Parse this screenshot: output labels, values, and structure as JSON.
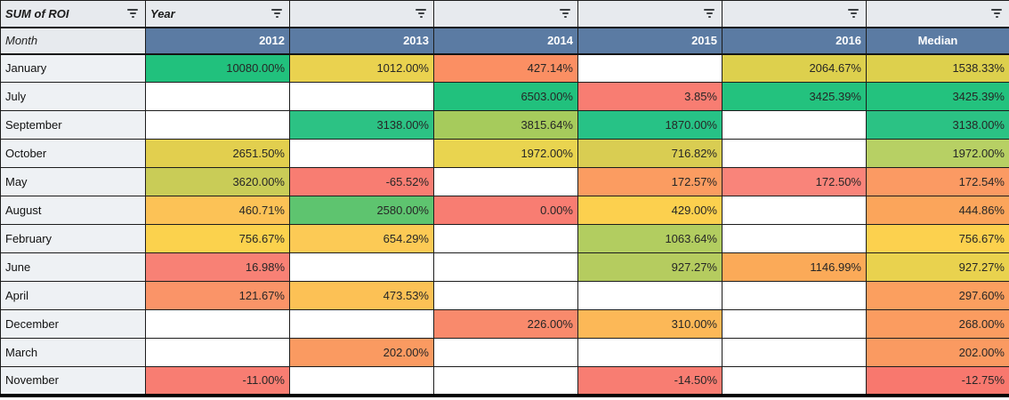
{
  "pivot": {
    "measure_label": "SUM of ROI",
    "col_dim_label": "Year",
    "row_dim_label": "Month",
    "columns": [
      "2012",
      "2013",
      "2014",
      "2015",
      "2016",
      "Median"
    ],
    "header_bg": "#5b7ba3",
    "filter_row_bg": "#e7eaee",
    "rows": [
      {
        "month": "January",
        "cells": [
          {
            "v": "10080.00%",
            "c": "#21c17d"
          },
          {
            "v": "1012.00%",
            "c": "#ead24f"
          },
          {
            "v": "427.14%",
            "c": "#fb8f63"
          },
          {
            "v": "",
            "c": "#ffffff"
          },
          {
            "v": "2064.67%",
            "c": "#ddd04d"
          },
          {
            "v": "1538.33%",
            "c": "#ddd04d"
          }
        ]
      },
      {
        "month": "July",
        "cells": [
          {
            "v": "",
            "c": "#ffffff"
          },
          {
            "v": "",
            "c": "#ffffff"
          },
          {
            "v": "6503.00%",
            "c": "#21c17d"
          },
          {
            "v": "3.85%",
            "c": "#f87d72"
          },
          {
            "v": "3425.39%",
            "c": "#23c27e"
          },
          {
            "v": "3425.39%",
            "c": "#23c27e"
          }
        ]
      },
      {
        "month": "September",
        "cells": [
          {
            "v": "",
            "c": "#ffffff"
          },
          {
            "v": "3138.00%",
            "c": "#2cc284"
          },
          {
            "v": "3815.64%",
            "c": "#a6cb5c"
          },
          {
            "v": "1870.00%",
            "c": "#27c286"
          },
          {
            "v": "",
            "c": "#ffffff"
          },
          {
            "v": "3138.00%",
            "c": "#2bc284"
          }
        ]
      },
      {
        "month": "October",
        "cells": [
          {
            "v": "2651.50%",
            "c": "#e2cf4e"
          },
          {
            "v": "",
            "c": "#ffffff"
          },
          {
            "v": "1972.00%",
            "c": "#e9d44f"
          },
          {
            "v": "716.82%",
            "c": "#d9cd52"
          },
          {
            "v": "",
            "c": "#ffffff"
          },
          {
            "v": "1972.00%",
            "c": "#b7d064"
          }
        ]
      },
      {
        "month": "May",
        "cells": [
          {
            "v": "3620.00%",
            "c": "#c9cc57"
          },
          {
            "v": "-65.52%",
            "c": "#f87d72"
          },
          {
            "v": "",
            "c": "#ffffff"
          },
          {
            "v": "172.57%",
            "c": "#fb9c61"
          },
          {
            "v": "172.50%",
            "c": "#f9847a"
          },
          {
            "v": "172.54%",
            "c": "#fb9a63"
          }
        ]
      },
      {
        "month": "August",
        "cells": [
          {
            "v": "460.71%",
            "c": "#fcc256"
          },
          {
            "v": "2580.00%",
            "c": "#5ec46f"
          },
          {
            "v": "0.00%",
            "c": "#f87d72"
          },
          {
            "v": "429.00%",
            "c": "#fcd04e"
          },
          {
            "v": "",
            "c": "#ffffff"
          },
          {
            "v": "444.86%",
            "c": "#fba55b"
          }
        ]
      },
      {
        "month": "February",
        "cells": [
          {
            "v": "756.67%",
            "c": "#fbd24d"
          },
          {
            "v": "654.29%",
            "c": "#fcca55"
          },
          {
            "v": "",
            "c": "#ffffff"
          },
          {
            "v": "1063.64%",
            "c": "#b2cd60"
          },
          {
            "v": "",
            "c": "#ffffff"
          },
          {
            "v": "756.67%",
            "c": "#fcd14e"
          }
        ]
      },
      {
        "month": "June",
        "cells": [
          {
            "v": "16.98%",
            "c": "#f88175"
          },
          {
            "v": "",
            "c": "#ffffff"
          },
          {
            "v": "",
            "c": "#ffffff"
          },
          {
            "v": "927.27%",
            "c": "#b5cc5f"
          },
          {
            "v": "1146.99%",
            "c": "#fbaa58"
          },
          {
            "v": "927.27%",
            "c": "#e9d24e"
          }
        ]
      },
      {
        "month": "April",
        "cells": [
          {
            "v": "121.67%",
            "c": "#fa9468"
          },
          {
            "v": "473.53%",
            "c": "#fcc155"
          },
          {
            "v": "",
            "c": "#ffffff"
          },
          {
            "v": "",
            "c": "#ffffff"
          },
          {
            "v": "",
            "c": "#ffffff"
          },
          {
            "v": "297.60%",
            "c": "#fb9f5f"
          }
        ]
      },
      {
        "month": "December",
        "cells": [
          {
            "v": "",
            "c": "#ffffff"
          },
          {
            "v": "",
            "c": "#ffffff"
          },
          {
            "v": "226.00%",
            "c": "#f98a6c"
          },
          {
            "v": "310.00%",
            "c": "#fcb857"
          },
          {
            "v": "",
            "c": "#ffffff"
          },
          {
            "v": "268.00%",
            "c": "#fb9c60"
          }
        ]
      },
      {
        "month": "March",
        "cells": [
          {
            "v": "",
            "c": "#ffffff"
          },
          {
            "v": "202.00%",
            "c": "#fa9a61"
          },
          {
            "v": "",
            "c": "#ffffff"
          },
          {
            "v": "",
            "c": "#ffffff"
          },
          {
            "v": "",
            "c": "#ffffff"
          },
          {
            "v": "202.00%",
            "c": "#fa9a61"
          }
        ]
      },
      {
        "month": "November",
        "cells": [
          {
            "v": "-11.00%",
            "c": "#f87d72"
          },
          {
            "v": "",
            "c": "#ffffff"
          },
          {
            "v": "",
            "c": "#ffffff"
          },
          {
            "v": "-14.50%",
            "c": "#f87d72"
          },
          {
            "v": "",
            "c": "#ffffff"
          },
          {
            "v": "-12.75%",
            "c": "#f8786e"
          }
        ]
      }
    ]
  }
}
